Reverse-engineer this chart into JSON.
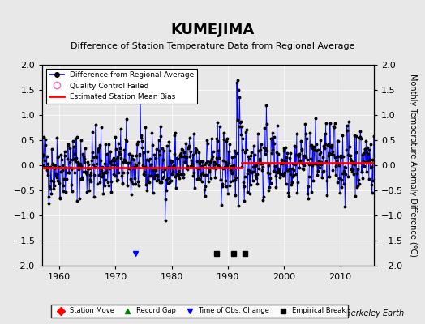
{
  "title": "KUMEJIMA",
  "subtitle": "Difference of Station Temperature Data from Regional Average",
  "ylabel": "Monthly Temperature Anomaly Difference (°C)",
  "xlabel_credit": "Berkeley Earth",
  "ylim": [
    -2,
    2
  ],
  "xlim": [
    1957,
    2016
  ],
  "xticks": [
    1960,
    1970,
    1980,
    1990,
    2000,
    2010
  ],
  "yticks": [
    -2,
    -1.5,
    -1,
    -0.5,
    0,
    0.5,
    1,
    1.5,
    2
  ],
  "bias_before": -0.05,
  "bias_after": 0.05,
  "break_year": 1992.5,
  "empirical_breaks": [
    1988.0,
    1991.0,
    1993.0
  ],
  "obs_changes": [
    1973.5
  ],
  "bg_color": "#e8e8e8",
  "plot_bg_color": "#e8e8e8",
  "line_color": "#0000ff",
  "dot_color": "#000000",
  "bias_color": "#ff0000",
  "seed": 42
}
